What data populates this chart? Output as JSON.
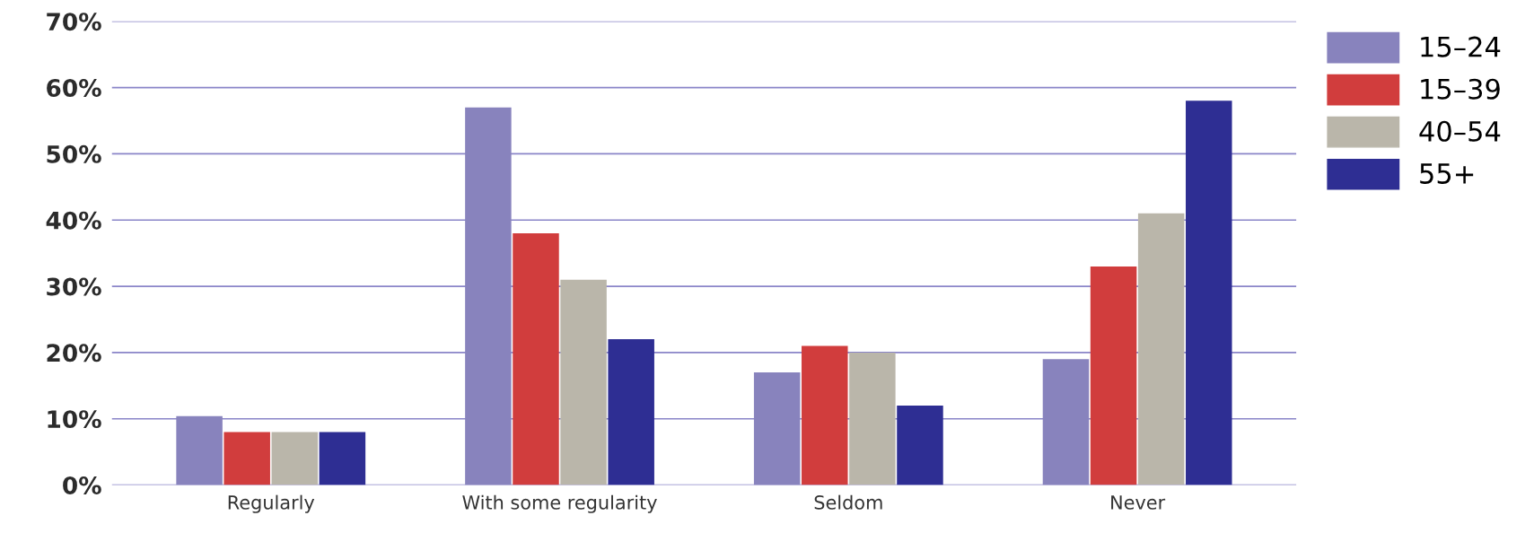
{
  "chart_data": {
    "type": "bar",
    "categories": [
      "Regularly",
      "With some regularity",
      "Seldom",
      "Never"
    ],
    "series": [
      {
        "name": "15–24",
        "color": "#8883bd",
        "values": [
          10.4,
          57,
          17,
          19
        ]
      },
      {
        "name": "15–39",
        "color": "#d13d3d",
        "values": [
          8,
          38,
          21,
          33
        ]
      },
      {
        "name": "40–54",
        "color": "#bab6aa",
        "values": [
          8,
          31,
          20,
          41
        ]
      },
      {
        "name": "55+",
        "color": "#2e2e93",
        "values": [
          8,
          22,
          12,
          58
        ]
      }
    ],
    "ylim": [
      0,
      70
    ],
    "yticks": [
      {
        "value": 0,
        "label": "0%"
      },
      {
        "value": 10,
        "label": "10%"
      },
      {
        "value": 20,
        "label": "20%"
      },
      {
        "value": 30,
        "label": "30%"
      },
      {
        "value": 40,
        "label": "40%"
      },
      {
        "value": 50,
        "label": "50%"
      },
      {
        "value": 60,
        "label": "60%"
      },
      {
        "value": 70,
        "label": "70%"
      }
    ],
    "grid": "y",
    "legend": "top right"
  }
}
